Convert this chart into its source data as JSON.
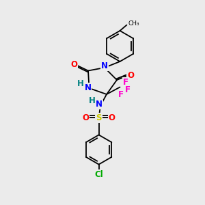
{
  "bg_color": "#ebebeb",
  "bond_color": "#000000",
  "bond_lw": 1.3,
  "atom_colors": {
    "N": "#0000ff",
    "O": "#ff0000",
    "F": "#ff00cc",
    "S": "#cccc00",
    "Cl": "#00aa00",
    "H": "#008080",
    "C": "#000000"
  },
  "font_size": 8.5,
  "font_size_ch3": 6.5
}
